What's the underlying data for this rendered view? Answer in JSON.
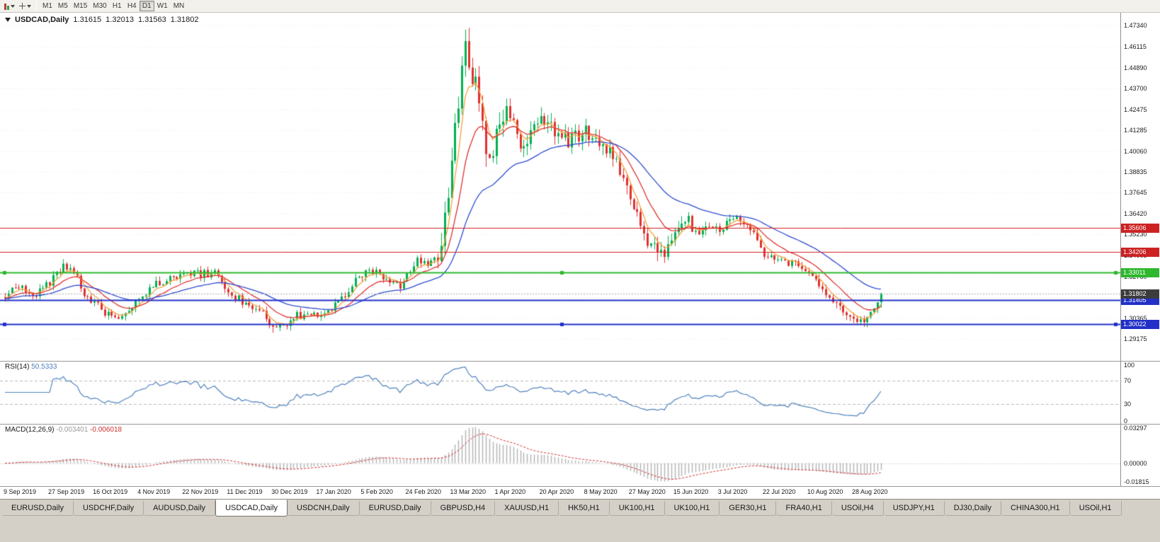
{
  "toolbar": {
    "timeframes": [
      "M1",
      "M5",
      "M15",
      "M30",
      "H1",
      "H4",
      "D1",
      "W1",
      "MN"
    ],
    "active_timeframe": "D1",
    "icons": [
      "candles-icon",
      "chevron-down-icon",
      "crosshair-icon",
      "chevron-down-icon"
    ]
  },
  "chart": {
    "symbol_label": "USDCAD,Daily",
    "ohlc": {
      "open": "1.31615",
      "high": "1.32013",
      "low": "1.31563",
      "close": "1.31802"
    },
    "price_axis_labels": [
      "1.47340",
      "1.46115",
      "1.44890",
      "1.43700",
      "1.42475",
      "1.41285",
      "1.40060",
      "1.38835",
      "1.37645",
      "1.36420",
      "1.35230",
      "1.34005",
      "1.32780",
      "1.31590",
      "1.30365",
      "1.29175"
    ],
    "scale": {
      "price_top": 1.476,
      "price_bottom": 1.285
    },
    "hlines": [
      {
        "price": 1.35606,
        "label": "1.35606",
        "color": "#cc2222",
        "width": 1,
        "handles": false
      },
      {
        "price": 1.34206,
        "label": "1.34206",
        "color": "#cc2222",
        "width": 1,
        "handles": false
      },
      {
        "price": 1.33011,
        "label": "1.33011",
        "color": "#2eb82e",
        "width": 2,
        "handles": true
      },
      {
        "price": 1.31405,
        "label": "1.31405",
        "color": "#2230c8",
        "width": 2,
        "handles": false
      },
      {
        "price": 1.30022,
        "label": "1.30022",
        "color": "#2230c8",
        "width": 2,
        "handles": true
      }
    ],
    "current_price": {
      "value": 1.31802,
      "label": "1.31802",
      "badge_color": "#3c3c3c"
    }
  },
  "rsi": {
    "title": "RSI(14)",
    "value": "50.5333",
    "axis_labels": [
      "100",
      "70",
      "30",
      "0"
    ]
  },
  "macd": {
    "title": "MACD(12,26,9)",
    "value_main": "-0.003401",
    "value_signal": "-0.006018",
    "axis_labels": [
      "0.03297",
      "0.00000",
      "-0.01815"
    ]
  },
  "date_axis": [
    "9 Sep 2019",
    "27 Sep 2019",
    "16 Oct 2019",
    "4 Nov 2019",
    "22 Nov 2019",
    "11 Dec 2019",
    "30 Dec 2019",
    "17 Jan 2020",
    "5 Feb 2020",
    "24 Feb 2020",
    "13 Mar 2020",
    "1 Apr 2020",
    "20 Apr 2020",
    "8 May 2020",
    "27 May 2020",
    "15 Jun 2020",
    "3 Jul 2020",
    "22 Jul 2020",
    "10 Aug 2020",
    "28 Aug 2020"
  ],
  "tabs": {
    "items": [
      "EURUSD,Daily",
      "USDCHF,Daily",
      "AUDUSD,Daily",
      "USDCAD,Daily",
      "USDCNH,Daily",
      "EURUSD,Daily",
      "GBPUSD,H4",
      "XAUUSD,H1",
      "HK50,H1",
      "UK100,H1",
      "UK100,H1",
      "GER30,H1",
      "FRA40,H1",
      "USOil,H4",
      "USDJPY,H1",
      "DJ30,Daily",
      "CHINA300,H1",
      "USOil,H1"
    ],
    "active_index": 3
  },
  "chart_data": {
    "type": "candlestick",
    "symbol": "USDCAD",
    "timeframe": "Daily",
    "bars": 256,
    "last_close": 1.31802,
    "price_range": [
      1.285,
      1.476
    ],
    "anchors": [
      [
        0,
        1.317
      ],
      [
        4,
        1.323
      ],
      [
        8,
        1.316
      ],
      [
        13,
        1.3245
      ],
      [
        17,
        1.3335
      ],
      [
        20,
        1.33
      ],
      [
        23,
        1.318
      ],
      [
        26,
        1.313
      ],
      [
        30,
        1.3055
      ],
      [
        34,
        1.305
      ],
      [
        39,
        1.3155
      ],
      [
        44,
        1.3235
      ],
      [
        48,
        1.327
      ],
      [
        52,
        1.3305
      ],
      [
        57,
        1.329
      ],
      [
        61,
        1.33
      ],
      [
        65,
        1.319
      ],
      [
        70,
        1.312
      ],
      [
        74,
        1.308
      ],
      [
        78,
        1.2985
      ],
      [
        81,
        1.2975
      ],
      [
        85,
        1.305
      ],
      [
        91,
        1.3065
      ],
      [
        96,
        1.311
      ],
      [
        100,
        1.3205
      ],
      [
        104,
        1.329
      ],
      [
        108,
        1.3305
      ],
      [
        112,
        1.325
      ],
      [
        115,
        1.3225
      ],
      [
        117,
        1.329
      ],
      [
        120,
        1.3385
      ],
      [
        123,
        1.333
      ],
      [
        126,
        1.343
      ],
      [
        128,
        1.362
      ],
      [
        130,
        1.39
      ],
      [
        132,
        1.43
      ],
      [
        134,
        1.458
      ],
      [
        136,
        1.445
      ],
      [
        138,
        1.43
      ],
      [
        140,
        1.406
      ],
      [
        142,
        1.401
      ],
      [
        144,
        1.419
      ],
      [
        146,
        1.428
      ],
      [
        148,
        1.415
      ],
      [
        150,
        1.401
      ],
      [
        153,
        1.409
      ],
      [
        156,
        1.419
      ],
      [
        159,
        1.413
      ],
      [
        162,
        1.406
      ],
      [
        165,
        1.4075
      ],
      [
        169,
        1.4115
      ],
      [
        172,
        1.4085
      ],
      [
        176,
        1.3985
      ],
      [
        179,
        1.3905
      ],
      [
        182,
        1.373
      ],
      [
        185,
        1.358
      ],
      [
        188,
        1.3445
      ],
      [
        191,
        1.339
      ],
      [
        195,
        1.3555
      ],
      [
        198,
        1.3625
      ],
      [
        202,
        1.3545
      ],
      [
        205,
        1.3575
      ],
      [
        208,
        1.3545
      ],
      [
        212,
        1.3615
      ],
      [
        216,
        1.3555
      ],
      [
        219,
        1.3485
      ],
      [
        221,
        1.3405
      ],
      [
        225,
        1.3395
      ],
      [
        229,
        1.3355
      ],
      [
        233,
        1.3295
      ],
      [
        237,
        1.3235
      ],
      [
        241,
        1.3145
      ],
      [
        245,
        1.3065
      ],
      [
        248,
        1.3025
      ],
      [
        250,
        1.2998
      ],
      [
        252,
        1.306
      ],
      [
        254,
        1.3155
      ],
      [
        255,
        1.318
      ]
    ],
    "volatility_zones": [
      [
        0,
        0.003
      ],
      [
        126,
        0.009
      ],
      [
        146,
        0.006
      ],
      [
        201,
        0.0035
      ]
    ],
    "spike_high": [
      134,
      1.4668
    ],
    "key_lows": [
      [
        78,
        1.2952
      ],
      [
        250,
        1.2986
      ]
    ],
    "up_color": "#00b050",
    "down_color": "#e03030",
    "moving_averages": [
      {
        "type": "ema",
        "period": 5,
        "color": "#f2a23c"
      },
      {
        "type": "ema",
        "period": 13,
        "color": "#e03030"
      },
      {
        "type": "ema",
        "period": 34,
        "color": "#2e4bd0"
      }
    ],
    "indicators": {
      "rsi": {
        "period": 14,
        "color": "#4f81bd",
        "range": [
          0,
          100
        ],
        "levels": [
          70,
          30
        ]
      },
      "macd": {
        "fast": 12,
        "slow": 26,
        "signal": 9,
        "range": [
          -0.01815,
          0.03297
        ],
        "hist_color": "#b5b5b5",
        "signal_color": "#d03030"
      }
    },
    "bars_per_date_label": 13
  }
}
